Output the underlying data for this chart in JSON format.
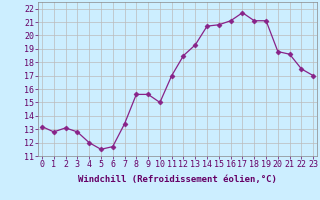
{
  "x": [
    0,
    1,
    2,
    3,
    4,
    5,
    6,
    7,
    8,
    9,
    10,
    11,
    12,
    13,
    14,
    15,
    16,
    17,
    18,
    19,
    20,
    21,
    22,
    23
  ],
  "y": [
    13.2,
    12.8,
    13.1,
    12.8,
    12.0,
    11.5,
    11.7,
    13.4,
    15.6,
    15.6,
    15.0,
    17.0,
    18.5,
    19.3,
    20.7,
    20.8,
    21.1,
    21.7,
    21.1,
    21.1,
    18.8,
    18.6,
    17.5,
    17.0
  ],
  "line_color": "#882288",
  "marker": "D",
  "marker_size": 2.5,
  "bg_color": "#cceeff",
  "grid_color": "#bbbbbb",
  "xlabel": "Windchill (Refroidissement éolien,°C)",
  "xlabel_fontsize": 6.5,
  "tick_fontsize": 6.0,
  "ylim": [
    11,
    22.5
  ],
  "yticks": [
    11,
    12,
    13,
    14,
    15,
    16,
    17,
    18,
    19,
    20,
    21,
    22
  ],
  "xticks": [
    0,
    1,
    2,
    3,
    4,
    5,
    6,
    7,
    8,
    9,
    10,
    11,
    12,
    13,
    14,
    15,
    16,
    17,
    18,
    19,
    20,
    21,
    22,
    23
  ],
  "xlim": [
    -0.3,
    23.3
  ]
}
